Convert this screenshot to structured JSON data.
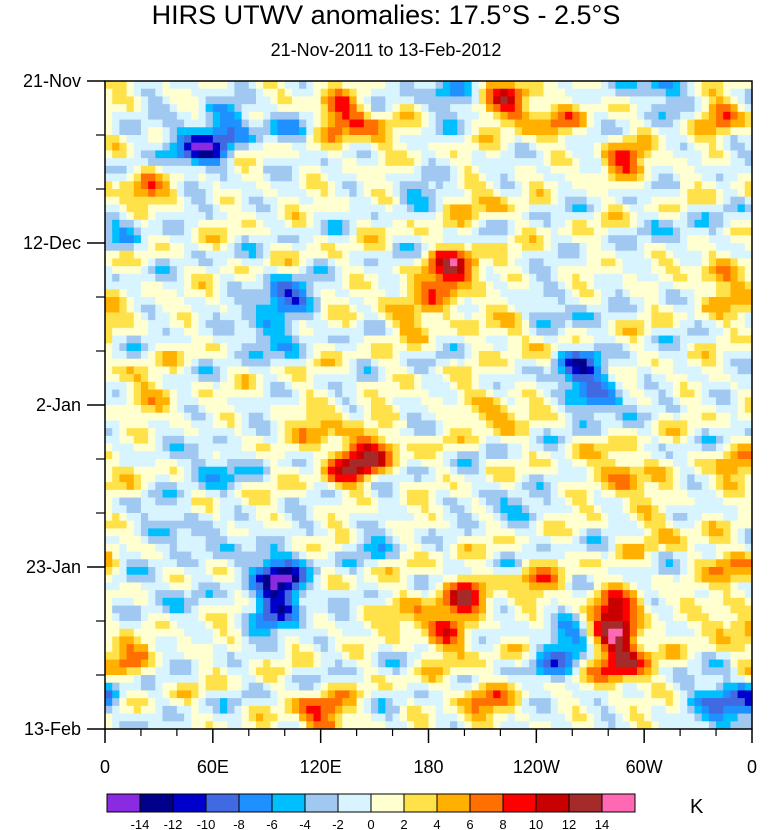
{
  "chart_data": {
    "type": "heatmap",
    "title": "HIRS UTWV anomalies: 17.5°S - 2.5°S",
    "subtitle": "21-Nov-2011 to 13-Feb-2012",
    "x_ticks": [
      "0",
      "60E",
      "120E",
      "180",
      "120W",
      "60W",
      "0"
    ],
    "x_tick_lon": [
      0,
      60,
      120,
      180,
      240,
      300,
      360
    ],
    "x_range": [
      0,
      360
    ],
    "y_ticks": [
      "21-Nov",
      "12-Dec",
      "2-Jan",
      "23-Jan",
      "13-Feb"
    ],
    "y_tick_day": [
      0,
      21,
      42,
      63,
      84
    ],
    "y_range_days": [
      0,
      84
    ],
    "colorbar_labels": [
      "-14",
      "-12",
      "-10",
      "-8",
      "-6",
      "-4",
      "-2",
      "0",
      "2",
      "4",
      "6",
      "8",
      "10",
      "12",
      "14"
    ],
    "colorbar_colors": [
      "#8a2be2",
      "#00008b",
      "#0000cd",
      "#4169e1",
      "#1e90ff",
      "#00bfff",
      "#a0c8f0",
      "#d8f4ff",
      "#ffffd0",
      "#ffe24a",
      "#ffb000",
      "#ff7000",
      "#ff0000",
      "#c80000",
      "#a52a2a",
      "#ff69b4"
    ],
    "units": "K",
    "features": [
      {
        "lon": 45,
        "day": 8,
        "value": -8
      },
      {
        "lon": 60,
        "day": 9,
        "value": -7
      },
      {
        "lon": 70,
        "day": 5,
        "value": -6
      },
      {
        "lon": 100,
        "day": 6,
        "value": -4
      },
      {
        "lon": 130,
        "day": 4,
        "value": 9
      },
      {
        "lon": 150,
        "day": 7,
        "value": 5
      },
      {
        "lon": 190,
        "day": 2,
        "value": -6
      },
      {
        "lon": 225,
        "day": 3,
        "value": 10
      },
      {
        "lon": 250,
        "day": 5,
        "value": 5
      },
      {
        "lon": 310,
        "day": 1,
        "value": -8
      },
      {
        "lon": 290,
        "day": 10,
        "value": 7
      },
      {
        "lon": 340,
        "day": 4,
        "value": 6
      },
      {
        "lon": 20,
        "day": 14,
        "value": 6
      },
      {
        "lon": 12,
        "day": 20,
        "value": -4
      },
      {
        "lon": 100,
        "day": 28,
        "value": -10
      },
      {
        "lon": 88,
        "day": 33,
        "value": -7
      },
      {
        "lon": 195,
        "day": 24,
        "value": 11
      },
      {
        "lon": 188,
        "day": 28,
        "value": 6
      },
      {
        "lon": 165,
        "day": 30,
        "value": 5
      },
      {
        "lon": 230,
        "day": 33,
        "value": 4
      },
      {
        "lon": 262,
        "day": 37,
        "value": -9
      },
      {
        "lon": 275,
        "day": 41,
        "value": -9
      },
      {
        "lon": 252,
        "day": 30,
        "value": -4
      },
      {
        "lon": 340,
        "day": 25,
        "value": 6
      },
      {
        "lon": 355,
        "day": 30,
        "value": 4
      },
      {
        "lon": 20,
        "day": 40,
        "value": 5
      },
      {
        "lon": 135,
        "day": 50,
        "value": 9
      },
      {
        "lon": 150,
        "day": 48,
        "value": 8
      },
      {
        "lon": 120,
        "day": 45,
        "value": 5
      },
      {
        "lon": 215,
        "day": 43,
        "value": 6
      },
      {
        "lon": 225,
        "day": 55,
        "value": -4
      },
      {
        "lon": 288,
        "day": 51,
        "value": 8
      },
      {
        "lon": 310,
        "day": 58,
        "value": 4
      },
      {
        "lon": 350,
        "day": 50,
        "value": 5
      },
      {
        "lon": 60,
        "day": 50,
        "value": -6
      },
      {
        "lon": 40,
        "day": 58,
        "value": -5
      },
      {
        "lon": 100,
        "day": 65,
        "value": -12
      },
      {
        "lon": 95,
        "day": 69,
        "value": -9
      },
      {
        "lon": 85,
        "day": 62,
        "value": -6
      },
      {
        "lon": 200,
        "day": 67,
        "value": 10
      },
      {
        "lon": 190,
        "day": 72,
        "value": 7
      },
      {
        "lon": 170,
        "day": 69,
        "value": 5
      },
      {
        "lon": 240,
        "day": 65,
        "value": 5
      },
      {
        "lon": 283,
        "day": 68,
        "value": 9
      },
      {
        "lon": 285,
        "day": 72,
        "value": 13
      },
      {
        "lon": 288,
        "day": 76,
        "value": 10
      },
      {
        "lon": 260,
        "day": 72,
        "value": -7
      },
      {
        "lon": 250,
        "day": 76,
        "value": -5
      },
      {
        "lon": 350,
        "day": 63,
        "value": 7
      },
      {
        "lon": 345,
        "day": 70,
        "value": 5
      },
      {
        "lon": 340,
        "day": 81,
        "value": -7
      },
      {
        "lon": 355,
        "day": 80,
        "value": -8
      },
      {
        "lon": 120,
        "day": 82,
        "value": 9
      },
      {
        "lon": 210,
        "day": 80,
        "value": 7
      },
      {
        "lon": 10,
        "day": 75,
        "value": 6
      },
      {
        "lon": 30,
        "day": 66,
        "value": -4
      },
      {
        "lon": 150,
        "day": 60,
        "value": -3
      },
      {
        "lon": 175,
        "day": 14,
        "value": -3
      },
      {
        "lon": 210,
        "day": 16,
        "value": 4
      },
      {
        "lon": 320,
        "day": 20,
        "value": -3
      }
    ]
  }
}
